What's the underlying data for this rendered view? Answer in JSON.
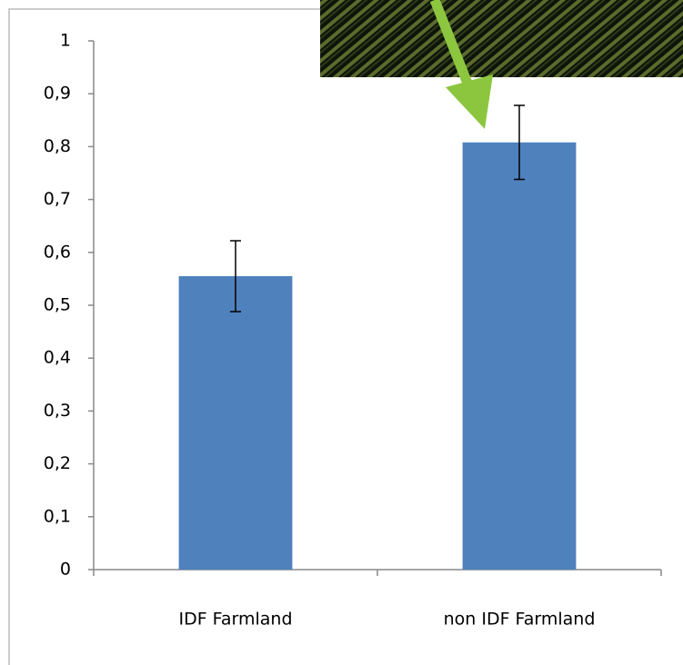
{
  "chart_data": {
    "type": "bar",
    "categories": [
      "IDF Farmland",
      "non IDF Farmland"
    ],
    "values": [
      0.555,
      0.808
    ],
    "errors": [
      0.067,
      0.07
    ],
    "color": "#4f81bd",
    "ylim": [
      0,
      1
    ],
    "yticks": [
      0,
      {
        "value": 0.1,
        "label": "0,1"
      },
      {
        "value": 0.2,
        "label": "0,2"
      },
      {
        "value": 0.3,
        "label": "0,3"
      },
      {
        "value": 0.4,
        "label": "0,4"
      },
      {
        "value": 0.5,
        "label": "0,5"
      },
      {
        "value": 0.6,
        "label": "0,6"
      },
      {
        "value": 0.7,
        "label": "0,7"
      },
      {
        "value": 0.8,
        "label": "0,8"
      },
      {
        "value": 0.9,
        "label": "0,9"
      },
      1
    ],
    "grid": false
  }
}
